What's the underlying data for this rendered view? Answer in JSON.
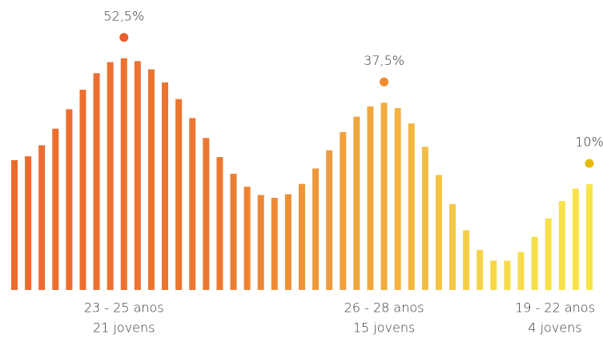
{
  "chart_data": {
    "type": "bar",
    "categories": [
      "23 - 25 anos",
      "26 - 28 anos",
      "19 - 22 anos"
    ],
    "sublabels": [
      "21 jovens",
      "15 jovens",
      "4 jovens"
    ],
    "values": [
      52.5,
      37.5,
      10
    ],
    "value_labels": [
      "52,5%",
      "37,5%",
      "10%"
    ],
    "colors": [
      "#e85d2a",
      "#ee8a2c",
      "#e8bb0e"
    ]
  }
}
